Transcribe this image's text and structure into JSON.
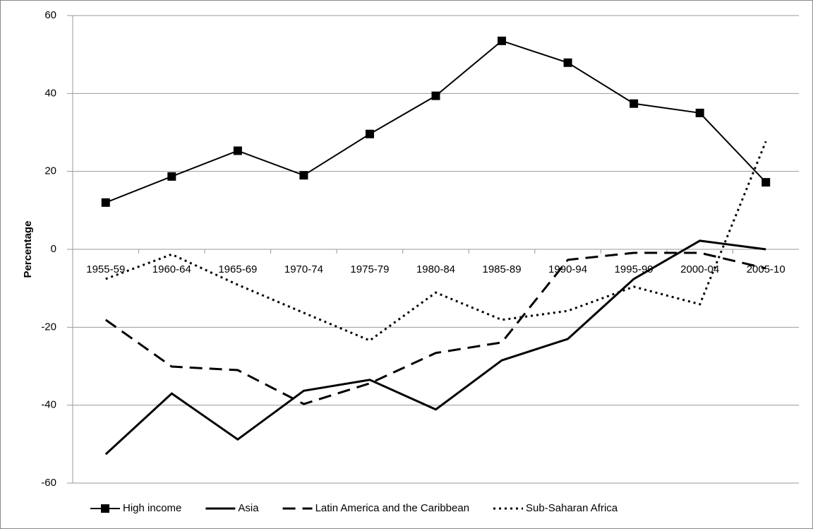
{
  "chart_data": {
    "type": "line",
    "y_label": "Percentage",
    "categories": [
      "1955-59",
      "1960-64",
      "1965-69",
      "1970-74",
      "1975-79",
      "1980-84",
      "1985-89",
      "1990-94",
      "1995-99",
      "2000-04",
      "2005-10"
    ],
    "series": [
      {
        "name": "High income",
        "color": "#000000",
        "style": "solid",
        "marker": "square",
        "values": [
          12,
          18.7,
          25.3,
          19,
          29.6,
          39.4,
          53.5,
          47.9,
          37.4,
          35,
          17.2
        ]
      },
      {
        "name": "Asia",
        "color": "#000000",
        "style": "solid",
        "values": [
          -52.6,
          -37,
          -48.8,
          -36.3,
          -33.5,
          -41.1,
          -28.5,
          -23,
          -7.6,
          2.2,
          0
        ]
      },
      {
        "name": "Latin America and the Caribbean",
        "color": "#000000",
        "style": "dashed",
        "values": [
          -18.1,
          -30.1,
          -31,
          -39.7,
          -34.4,
          -26.6,
          -23.9,
          -2.7,
          -0.9,
          -0.9,
          -4.9
        ]
      },
      {
        "name": "Sub-Saharan Africa",
        "color": "#000000",
        "style": "dotted",
        "values": [
          -7.6,
          -1.3,
          -9.1,
          -16.3,
          -23.4,
          -11.1,
          -18.1,
          -15.8,
          -9.6,
          -14.1,
          27.7
        ]
      }
    ],
    "ylim": [
      -60,
      60
    ],
    "yticks": [
      -60,
      -40,
      -20,
      0,
      20,
      40,
      60
    ],
    "grid": true,
    "legend": "bottom"
  }
}
